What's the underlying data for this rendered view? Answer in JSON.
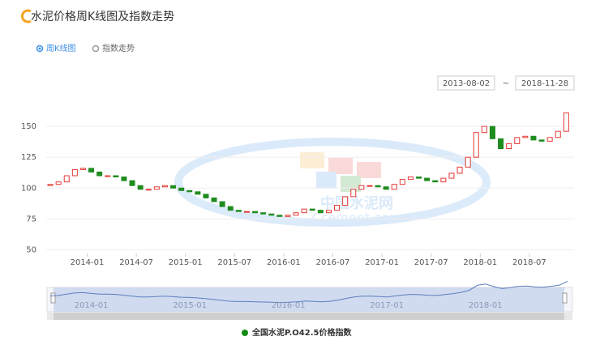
{
  "header": {
    "title": "水泥价格周K线图及指数走势",
    "tabs": [
      "周K线图",
      "指数走势"
    ],
    "range_start": "2013-08-02",
    "range_sep": "~",
    "range_end": "2018-11-28"
  },
  "watermark": {
    "cn": "中国水泥网",
    "en": "Ccement.com"
  },
  "chart_data": {
    "type": "candlestick",
    "up_color": "#e53935",
    "down_color": "#1e8c1e",
    "categories": [
      "2013-08",
      "2013-09",
      "2013-10",
      "2013-11",
      "2013-12",
      "2014-01",
      "2014-02",
      "2014-03",
      "2014-04",
      "2014-05",
      "2014-06",
      "2014-07",
      "2014-08",
      "2014-09",
      "2014-10",
      "2014-11",
      "2014-12",
      "2015-01",
      "2015-02",
      "2015-03",
      "2015-04",
      "2015-05",
      "2015-06",
      "2015-07",
      "2015-08",
      "2015-09",
      "2015-10",
      "2015-11",
      "2015-12",
      "2016-01",
      "2016-02",
      "2016-03",
      "2016-04",
      "2016-05",
      "2016-06",
      "2016-07",
      "2016-08",
      "2016-09",
      "2016-10",
      "2016-11",
      "2016-12",
      "2017-01",
      "2017-02",
      "2017-03",
      "2017-04",
      "2017-05",
      "2017-06",
      "2017-07",
      "2017-08",
      "2017-09",
      "2017-10",
      "2017-11",
      "2017-12",
      "2018-01",
      "2018-02",
      "2018-03",
      "2018-04",
      "2018-05",
      "2018-06",
      "2018-07",
      "2018-08",
      "2018-09",
      "2018-10",
      "2018-11"
    ],
    "xticks": [
      "2014-01",
      "2014-07",
      "2015-01",
      "2015-07",
      "2016-01",
      "2016-07",
      "2017-01",
      "2017-07",
      "2018-01",
      "2018-07"
    ],
    "slider_ticks": [
      "2014-01",
      "2015-01",
      "2016-01",
      "2017-01",
      "2018-01"
    ],
    "series": [
      {
        "name": "全国水泥P.O42.5价格指数",
        "color": "#138a13",
        "open": [
          102,
          103,
          105,
          110,
          115,
          116,
          113,
          110,
          110,
          109,
          106,
          102,
          99,
          99,
          101,
          102,
          100,
          98,
          97,
          95,
          92,
          89,
          85,
          82,
          81,
          81,
          80,
          79,
          78,
          77,
          78,
          80,
          83,
          82,
          80,
          82,
          86,
          93,
          99,
          102,
          102,
          101,
          99,
          103,
          107,
          109,
          108,
          106,
          105,
          108,
          112,
          117,
          125,
          145,
          150,
          140,
          132,
          136,
          141,
          142,
          139,
          138,
          141,
          146
        ],
        "close": [
          103,
          105,
          110,
          115,
          116,
          113,
          110,
          110,
          109,
          106,
          102,
          99,
          99,
          101,
          102,
          100,
          98,
          97,
          95,
          92,
          89,
          85,
          82,
          81,
          81,
          80,
          79,
          78,
          77,
          78,
          80,
          83,
          82,
          80,
          82,
          86,
          93,
          99,
          102,
          102,
          101,
          99,
          103,
          107,
          109,
          108,
          106,
          105,
          108,
          112,
          117,
          125,
          145,
          150,
          140,
          132,
          136,
          141,
          142,
          139,
          138,
          141,
          146,
          161
        ]
      }
    ],
    "ylim": [
      47,
      175
    ],
    "yticks": [
      50,
      75,
      100,
      125,
      150
    ],
    "grid": true
  }
}
